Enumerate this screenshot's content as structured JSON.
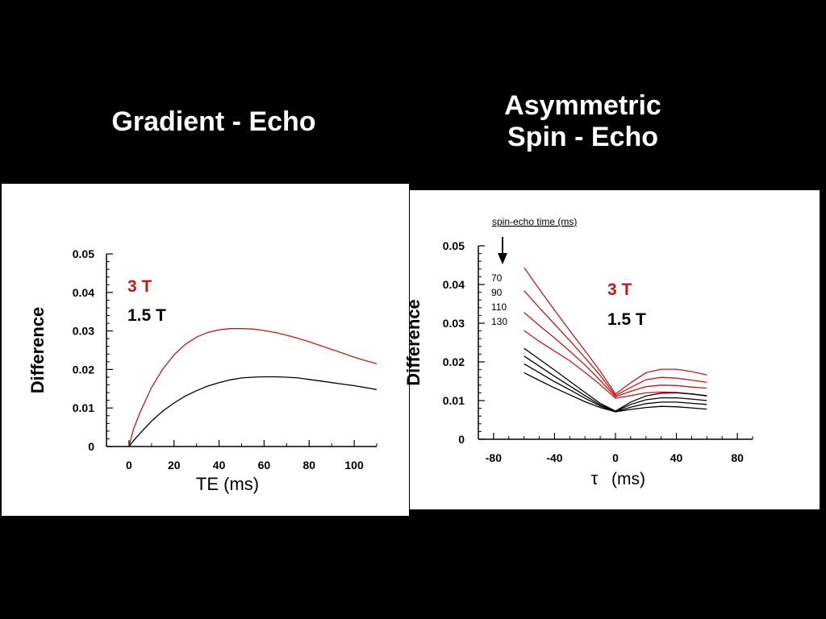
{
  "slide": {
    "title_left": "Gradient - Echo",
    "title_right_line1": "Asymmetric",
    "title_right_line2": "Spin - Echo"
  },
  "colors": {
    "red_3T": "#c0191e",
    "black_15T": "#000000",
    "background": "#000000",
    "panel": "#ffffff"
  },
  "chart_data": [
    {
      "type": "line",
      "ylabel": "Difference",
      "xlabel": "TE (ms)",
      "xlim": [
        -10,
        110
      ],
      "ylim": [
        0,
        0.05
      ],
      "xticks": [
        0,
        20,
        40,
        60,
        80,
        100
      ],
      "yticks": [
        0,
        0.01,
        0.02,
        0.03,
        0.04,
        0.05
      ],
      "ytick_labels": [
        "0",
        "0.01",
        "0.02",
        "0.03",
        "0.04",
        "0.05"
      ],
      "legend": [
        {
          "label": "3 T",
          "color": "#c0191e"
        },
        {
          "label": "1.5 T",
          "color": "#000000"
        }
      ],
      "series": [
        {
          "name": "3 T",
          "color": "#c0191e",
          "x": [
            0,
            2,
            5,
            10,
            15,
            20,
            25,
            30,
            35,
            40,
            45,
            50,
            55,
            60,
            65,
            70,
            75,
            80,
            85,
            90,
            95,
            100,
            105,
            110
          ],
          "y": [
            0.0,
            0.0045,
            0.009,
            0.0153,
            0.0201,
            0.0238,
            0.0265,
            0.0284,
            0.0296,
            0.0303,
            0.0306,
            0.0306,
            0.0305,
            0.0301,
            0.0296,
            0.0289,
            0.0281,
            0.0272,
            0.0262,
            0.0252,
            0.0242,
            0.0232,
            0.0223,
            0.0215
          ]
        },
        {
          "name": "1.5 T",
          "color": "#000000",
          "x": [
            0,
            2,
            5,
            10,
            15,
            20,
            25,
            30,
            35,
            40,
            45,
            50,
            55,
            60,
            65,
            70,
            75,
            80,
            85,
            90,
            95,
            100,
            105,
            110
          ],
          "y": [
            0.0,
            0.0015,
            0.0035,
            0.0066,
            0.0092,
            0.0113,
            0.0131,
            0.0145,
            0.0157,
            0.0166,
            0.0173,
            0.0178,
            0.018,
            0.0181,
            0.0181,
            0.018,
            0.0178,
            0.0174,
            0.017,
            0.0166,
            0.0162,
            0.0158,
            0.0153,
            0.0148
          ]
        }
      ]
    },
    {
      "type": "line",
      "ylabel": "Difference",
      "xlabel_symbol": "τ",
      "xlabel_unit": "(ms)",
      "xlim": [
        -90,
        90
      ],
      "ylim": [
        0,
        0.05
      ],
      "xticks": [
        -80,
        -40,
        0,
        40,
        80
      ],
      "yticks": [
        0,
        0.01,
        0.02,
        0.03,
        0.04,
        0.05
      ],
      "ytick_labels": [
        "0",
        "0.01",
        "0.02",
        "0.03",
        "0.04",
        "0.05"
      ],
      "annotation_title": "spin-echo time (ms)",
      "annotation_values": [
        "70",
        "90",
        "110",
        "130"
      ],
      "legend": [
        {
          "label": "3 T",
          "color": "#c0191e"
        },
        {
          "label": "1.5 T",
          "color": "#000000"
        }
      ],
      "x": [
        -60,
        -50,
        -40,
        -30,
        -20,
        -10,
        0,
        10,
        20,
        30,
        40,
        50,
        60
      ],
      "series": [
        {
          "name": "3 T (70 ms)",
          "color": "#c0191e",
          "y": [
            0.0444,
            0.0388,
            0.0334,
            0.0281,
            0.0229,
            0.0176,
            0.0117,
            0.0146,
            0.0172,
            0.0181,
            0.0181,
            0.0175,
            0.0166
          ]
        },
        {
          "name": "3 T (90 ms)",
          "color": "#c0191e",
          "y": [
            0.0384,
            0.034,
            0.0298,
            0.0255,
            0.0211,
            0.0165,
            0.0113,
            0.0134,
            0.0154,
            0.016,
            0.0158,
            0.0153,
            0.0147
          ]
        },
        {
          "name": "3 T (110 ms)",
          "color": "#c0191e",
          "y": [
            0.0328,
            0.0294,
            0.0262,
            0.0228,
            0.0192,
            0.0152,
            0.011,
            0.0124,
            0.0136,
            0.014,
            0.0139,
            0.0135,
            0.0132
          ]
        },
        {
          "name": "3 T (130 ms)",
          "color": "#c0191e",
          "y": [
            0.0281,
            0.0253,
            0.0228,
            0.0203,
            0.0173,
            0.0141,
            0.0106,
            0.0113,
            0.012,
            0.0122,
            0.0121,
            0.0117,
            0.0113
          ]
        },
        {
          "name": "1.5 T (70 ms)",
          "color": "#000000",
          "y": [
            0.0235,
            0.0207,
            0.0179,
            0.015,
            0.0121,
            0.0093,
            0.0073,
            0.0096,
            0.0112,
            0.0119,
            0.012,
            0.0117,
            0.0112
          ]
        },
        {
          "name": "1.5 T (90 ms)",
          "color": "#000000",
          "y": [
            0.0215,
            0.0189,
            0.0163,
            0.0138,
            0.0113,
            0.0089,
            0.0072,
            0.009,
            0.0102,
            0.0107,
            0.0107,
            0.0104,
            0.01
          ]
        },
        {
          "name": "1.5 T (110 ms)",
          "color": "#000000",
          "y": [
            0.0195,
            0.0172,
            0.0149,
            0.0128,
            0.0106,
            0.0086,
            0.0071,
            0.0083,
            0.0092,
            0.0096,
            0.0096,
            0.0093,
            0.009
          ]
        },
        {
          "name": "1.5 T (130 ms)",
          "color": "#000000",
          "y": [
            0.0172,
            0.0152,
            0.0133,
            0.0115,
            0.0097,
            0.0082,
            0.0071,
            0.0077,
            0.0082,
            0.0085,
            0.0084,
            0.0081,
            0.0078
          ]
        }
      ]
    }
  ]
}
